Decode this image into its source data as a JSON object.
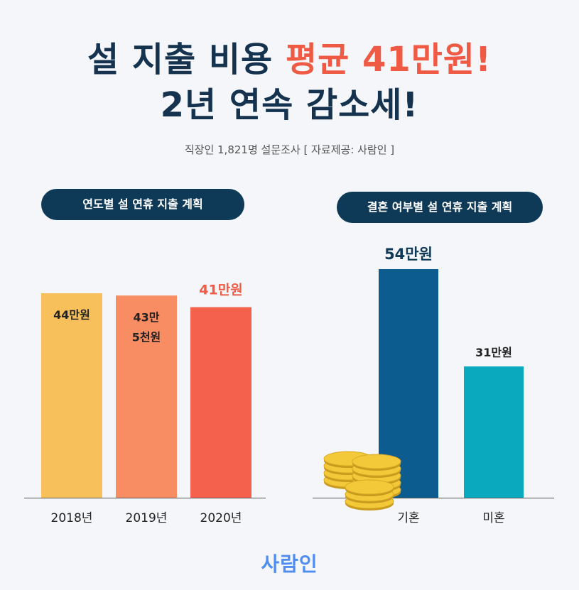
{
  "header": {
    "title_line1_part1": "설 지출 비용 ",
    "title_line1_accent": "평균 41만원!",
    "title_line2": "2년 연속 감소세!",
    "subtitle": "직장인 1,821명 설문조사 [ 자료제공: 사람인 ]"
  },
  "colors": {
    "navy": "#15334f",
    "accent": "#ef5a45",
    "pill_bg": "#0f3a57"
  },
  "chart_data": [
    {
      "type": "bar",
      "title": "연도별 설 연휴 지출 계획",
      "categories": [
        "2018년",
        "2019년",
        "2020년"
      ],
      "values": [
        44,
        43.5,
        41
      ],
      "value_labels": [
        [
          "44만원"
        ],
        [
          "43만",
          "5천원"
        ],
        [
          "41만원"
        ]
      ],
      "label_colors": [
        "#222222",
        "#222222",
        "#ef5a45"
      ],
      "bar_colors": [
        "#f7c05a",
        "#f88c62",
        "#f4624e"
      ],
      "unit": "만원"
    },
    {
      "type": "bar",
      "title": "결혼 여부별 설 연휴 지출 계획",
      "categories": [
        "기혼",
        "미혼"
      ],
      "values": [
        54,
        31
      ],
      "value_labels": [
        [
          "54만원"
        ],
        [
          "31만원"
        ]
      ],
      "label_colors": [
        "#0f3a57",
        "#222222"
      ],
      "bar_colors": [
        "#0d5c8f",
        "#0aa9bd"
      ],
      "unit": "만원"
    }
  ],
  "footer": {
    "logo_text": "사람인"
  }
}
